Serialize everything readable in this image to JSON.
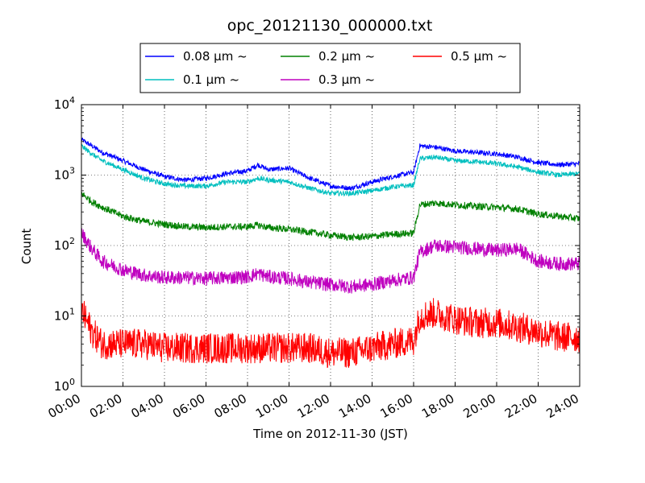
{
  "chart_data": {
    "type": "line",
    "title": "opc_20121130_000000.txt",
    "xlabel": "Time on 2012-11-30 (JST)",
    "ylabel": "Count",
    "x_unit": "hours",
    "xlim": [
      0,
      24
    ],
    "ylim": [
      1,
      10000
    ],
    "yscale": "log",
    "grid": true,
    "legend_position": "top-center",
    "x_tick_labels": [
      "00:00",
      "02:00",
      "04:00",
      "06:00",
      "08:00",
      "10:00",
      "12:00",
      "14:00",
      "16:00",
      "18:00",
      "20:00",
      "22:00",
      "24:00"
    ],
    "y_tick_labels": [
      {
        "base": "10",
        "exp": "0"
      },
      {
        "base": "10",
        "exp": "1"
      },
      {
        "base": "10",
        "exp": "2"
      },
      {
        "base": "10",
        "exp": "3"
      },
      {
        "base": "10",
        "exp": "4"
      }
    ],
    "x": [
      0,
      0.5,
      1,
      2,
      3,
      4,
      5,
      6,
      7,
      8,
      8.5,
      9,
      10,
      11,
      12,
      13,
      14,
      15,
      16,
      16.3,
      17,
      18,
      19,
      20,
      21,
      22,
      23,
      24
    ],
    "series": [
      {
        "name": "0.08 μm ~",
        "color": "#0000ff",
        "values": [
          3200,
          2600,
          2100,
          1600,
          1200,
          950,
          850,
          900,
          1050,
          1150,
          1400,
          1200,
          1250,
          900,
          700,
          650,
          800,
          950,
          1100,
          2600,
          2500,
          2200,
          2100,
          2000,
          1800,
          1500,
          1400,
          1450
        ]
      },
      {
        "name": "0.1 μm ~",
        "color": "#00bfbf",
        "values": [
          2600,
          2000,
          1600,
          1200,
          900,
          750,
          700,
          700,
          800,
          800,
          900,
          850,
          800,
          650,
          550,
          550,
          600,
          680,
          720,
          1700,
          1800,
          1600,
          1550,
          1450,
          1300,
          1100,
          1000,
          1050
        ]
      },
      {
        "name": "0.2 μm ~",
        "color": "#008000",
        "values": [
          550,
          420,
          350,
          260,
          220,
          200,
          185,
          180,
          185,
          185,
          195,
          180,
          170,
          155,
          140,
          130,
          135,
          145,
          150,
          380,
          400,
          380,
          360,
          350,
          330,
          280,
          260,
          240
        ]
      },
      {
        "name": "0.3 μm ~",
        "color": "#bf00bf",
        "values": [
          150,
          90,
          60,
          45,
          38,
          35,
          35,
          34,
          35,
          36,
          40,
          36,
          34,
          30,
          28,
          26,
          28,
          32,
          35,
          80,
          100,
          95,
          90,
          85,
          90,
          60,
          55,
          55
        ]
      },
      {
        "name": "0.5 μm ~",
        "color": "#ff0000",
        "values": [
          12,
          6,
          4,
          4,
          4,
          3.5,
          3.5,
          3.5,
          3.5,
          3.5,
          3.5,
          3.5,
          3.5,
          3.5,
          3,
          3,
          3.5,
          4,
          4.5,
          10,
          11,
          9,
          8,
          8,
          7,
          6,
          5,
          5
        ]
      }
    ]
  }
}
